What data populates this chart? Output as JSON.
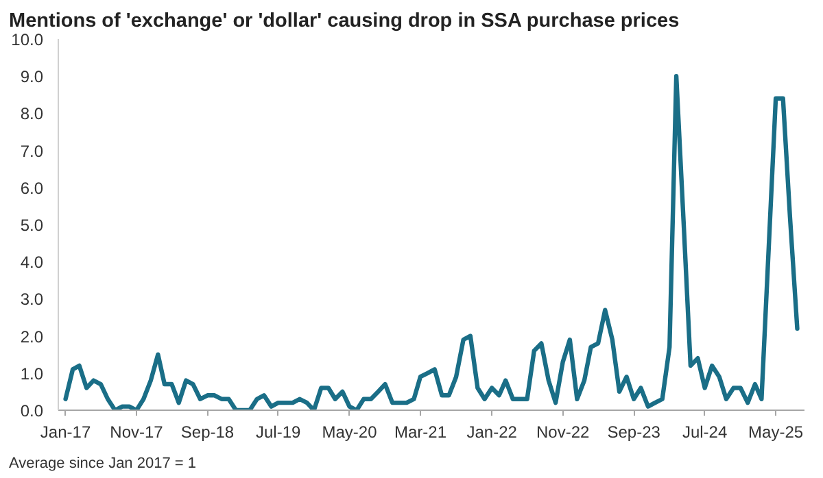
{
  "chart_data": {
    "type": "line",
    "title": "Mentions of 'exchange' or 'dollar' causing drop in SSA purchase prices",
    "annotations": [
      "Average since Jan 2017 = 1"
    ],
    "x": [
      "2017-01",
      "2017-02",
      "2017-03",
      "2017-04",
      "2017-05",
      "2017-06",
      "2017-07",
      "2017-08",
      "2017-09",
      "2017-10",
      "2017-11",
      "2017-12",
      "2018-01",
      "2018-02",
      "2018-03",
      "2018-04",
      "2018-05",
      "2018-06",
      "2018-07",
      "2018-08",
      "2018-09",
      "2018-10",
      "2018-11",
      "2018-12",
      "2019-01",
      "2019-02",
      "2019-03",
      "2019-04",
      "2019-05",
      "2019-06",
      "2019-07",
      "2019-08",
      "2019-09",
      "2019-10",
      "2019-11",
      "2019-12",
      "2020-01",
      "2020-02",
      "2020-03",
      "2020-04",
      "2020-05",
      "2020-06",
      "2020-07",
      "2020-08",
      "2020-09",
      "2020-10",
      "2020-11",
      "2020-12",
      "2021-01",
      "2021-02",
      "2021-03",
      "2021-04",
      "2021-05",
      "2021-06",
      "2021-07",
      "2021-08",
      "2021-09",
      "2021-10",
      "2021-11",
      "2021-12",
      "2022-01",
      "2022-02",
      "2022-03",
      "2022-04",
      "2022-05",
      "2022-06",
      "2022-07",
      "2022-08",
      "2022-09",
      "2022-10",
      "2022-11",
      "2022-12",
      "2023-01",
      "2023-02",
      "2023-03",
      "2023-04",
      "2023-05",
      "2023-06",
      "2023-07",
      "2023-08",
      "2023-09",
      "2023-10",
      "2023-11",
      "2023-12",
      "2024-01",
      "2024-02",
      "2024-03",
      "2024-04",
      "2024-05",
      "2024-06",
      "2024-07",
      "2024-08",
      "2024-09",
      "2024-10",
      "2024-11",
      "2024-12",
      "2025-01",
      "2025-02",
      "2025-03",
      "2025-04",
      "2025-05",
      "2025-06",
      "2025-07",
      "2025-08"
    ],
    "series": [
      {
        "color": "#1a6e87",
        "values": [
          0.3,
          1.1,
          1.2,
          0.6,
          0.8,
          0.7,
          0.3,
          0.0,
          0.1,
          0.1,
          0.0,
          0.3,
          0.8,
          1.5,
          0.7,
          0.7,
          0.2,
          0.8,
          0.7,
          0.3,
          0.4,
          0.4,
          0.3,
          0.3,
          0.0,
          0.0,
          0.0,
          0.3,
          0.4,
          0.1,
          0.2,
          0.2,
          0.2,
          0.3,
          0.2,
          0.0,
          0.6,
          0.6,
          0.3,
          0.5,
          0.1,
          0.0,
          0.3,
          0.3,
          0.5,
          0.7,
          0.2,
          0.2,
          0.2,
          0.3,
          0.9,
          1.0,
          1.1,
          0.4,
          0.4,
          0.9,
          1.9,
          2.0,
          0.6,
          0.3,
          0.6,
          0.4,
          0.8,
          0.3,
          0.3,
          0.3,
          1.6,
          1.8,
          0.8,
          0.2,
          1.3,
          1.9,
          0.3,
          0.8,
          1.7,
          1.8,
          2.7,
          1.9,
          0.5,
          0.9,
          0.3,
          0.6,
          0.1,
          0.2,
          0.3,
          1.7,
          9.0,
          5.1,
          1.2,
          1.4,
          0.6,
          1.2,
          0.9,
          0.3,
          0.6,
          0.6,
          0.2,
          0.7,
          0.3,
          4.4,
          8.4,
          8.4,
          5.2,
          2.2
        ]
      }
    ],
    "xlim": [
      "2016-12",
      "2025-09"
    ],
    "xticks": [
      {
        "value": "2017-01",
        "label": "Jan-17"
      },
      {
        "value": "2017-11",
        "label": "Nov-17"
      },
      {
        "value": "2018-09",
        "label": "Sep-18"
      },
      {
        "value": "2019-07",
        "label": "Jul-19"
      },
      {
        "value": "2020-05",
        "label": "May-20"
      },
      {
        "value": "2021-03",
        "label": "Mar-21"
      },
      {
        "value": "2022-01",
        "label": "Jan-22"
      },
      {
        "value": "2022-11",
        "label": "Nov-22"
      },
      {
        "value": "2023-09",
        "label": "Sep-23"
      },
      {
        "value": "2024-07",
        "label": "Jul-24"
      },
      {
        "value": "2025-05",
        "label": "May-25"
      }
    ],
    "ylim": [
      0,
      10
    ],
    "yticks": [
      {
        "value": 0,
        "label": "0.0"
      },
      {
        "value": 1,
        "label": "1.0"
      },
      {
        "value": 2,
        "label": "2.0"
      },
      {
        "value": 3,
        "label": "3.0"
      },
      {
        "value": 4,
        "label": "4.0"
      },
      {
        "value": 5,
        "label": "5.0"
      },
      {
        "value": 6,
        "label": "6.0"
      },
      {
        "value": 7,
        "label": "7.0"
      },
      {
        "value": 8,
        "label": "8.0"
      },
      {
        "value": 9,
        "label": "9.0"
      },
      {
        "value": 10,
        "label": "10.0"
      }
    ],
    "grid": false
  }
}
